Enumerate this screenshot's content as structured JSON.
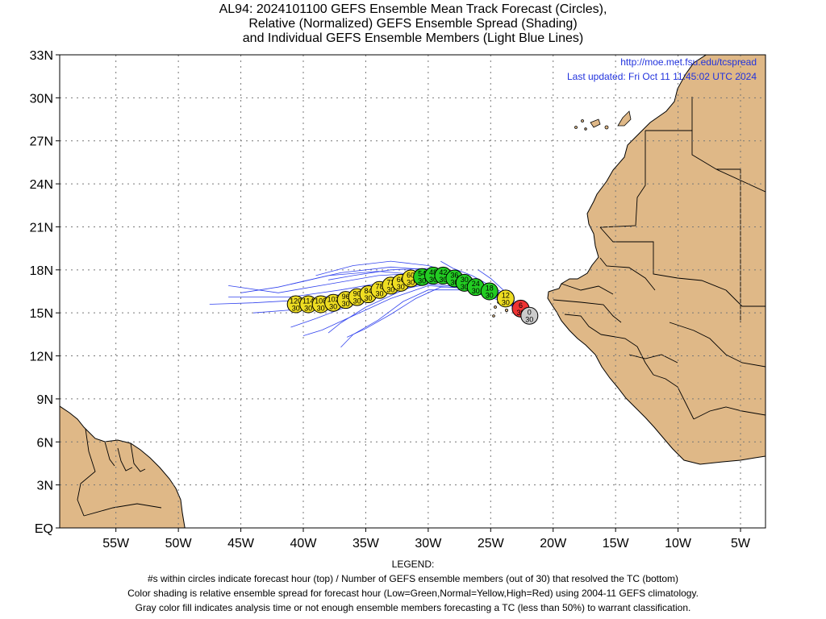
{
  "title": {
    "line1": "AL94: 2024101100 GEFS Ensemble Mean Track Forecast (Circles),",
    "line2": "Relative (Normalized) GEFS Ensemble Spread (Shading)",
    "line3": "and Individual GEFS Ensemble Members (Light Blue Lines)"
  },
  "credit": {
    "url": "http://moe.met.fsu.edu/tcspread",
    "updated": "Last updated: Fri Oct 11 11:45:02 UTC 2024"
  },
  "legend": {
    "header": "LEGEND:",
    "line1": "#s within circles indicate forecast hour (top) / Number of GEFS ensemble members (out of 30) that resolved the TC (bottom)",
    "line2": "Color shading is relative ensemble spread for forecast hour (Low=Green,Normal=Yellow,High=Red) using 2004-11 GEFS climatology.",
    "line3": "Gray color fill indicates analysis time or not enough ensemble members forecasting a TC (less than 50%) to warrant classification."
  },
  "axes": {
    "lat_labels": [
      "EQ",
      "3N",
      "6N",
      "9N",
      "12N",
      "15N",
      "18N",
      "21N",
      "24N",
      "27N",
      "30N",
      "33N"
    ],
    "lat_values": [
      0,
      3,
      6,
      9,
      12,
      15,
      18,
      21,
      24,
      27,
      30,
      33
    ],
    "lon_labels": [
      "55W",
      "50W",
      "45W",
      "40W",
      "35W",
      "30W",
      "25W",
      "20W",
      "15W",
      "10W",
      "5W"
    ],
    "lon_values": [
      -55,
      -50,
      -45,
      -40,
      -35,
      -30,
      -25,
      -20,
      -15,
      -10,
      -5
    ],
    "lon_range": [
      -59.5,
      -3
    ],
    "lat_range": [
      0,
      33
    ]
  },
  "colors": {
    "land": "#dfb887",
    "ocean": "#ffffff",
    "member_line": "#3344ee",
    "low_spread": "#22cc22",
    "normal_spread": "#eedd22",
    "high_spread": "#ee3333",
    "analysis": "#cccccc"
  },
  "track": [
    {
      "hour": "0",
      "members": "30",
      "lon": -21.9,
      "lat": 14.8,
      "spread": "gray"
    },
    {
      "hour": "6",
      "members": "30",
      "lon": -22.6,
      "lat": 15.3,
      "spread": "high"
    },
    {
      "hour": "12",
      "members": "30",
      "lon": -23.8,
      "lat": 16.0,
      "spread": "normal"
    },
    {
      "hour": "18",
      "members": "30",
      "lon": -25.1,
      "lat": 16.5,
      "spread": "low"
    },
    {
      "hour": "24",
      "members": "30",
      "lon": -26.2,
      "lat": 16.8,
      "spread": "low"
    },
    {
      "hour": "30",
      "members": "30",
      "lon": -27.1,
      "lat": 17.1,
      "spread": "low"
    },
    {
      "hour": "36",
      "members": "30",
      "lon": -27.9,
      "lat": 17.4,
      "spread": "low"
    },
    {
      "hour": "42",
      "members": "30",
      "lon": -28.8,
      "lat": 17.6,
      "spread": "low"
    },
    {
      "hour": "48",
      "members": "30",
      "lon": -29.6,
      "lat": 17.6,
      "spread": "low"
    },
    {
      "hour": "54",
      "members": "30",
      "lon": -30.5,
      "lat": 17.5,
      "spread": "low"
    },
    {
      "hour": "60",
      "members": "30",
      "lon": -31.4,
      "lat": 17.4,
      "spread": "normal"
    },
    {
      "hour": "66",
      "members": "30",
      "lon": -32.2,
      "lat": 17.1,
      "spread": "normal"
    },
    {
      "hour": "72",
      "members": "30",
      "lon": -33.0,
      "lat": 16.9,
      "spread": "normal"
    },
    {
      "hour": "78",
      "members": "30",
      "lon": -33.9,
      "lat": 16.6,
      "spread": "normal"
    },
    {
      "hour": "84",
      "members": "30",
      "lon": -34.8,
      "lat": 16.3,
      "spread": "normal"
    },
    {
      "hour": "90",
      "members": "30",
      "lon": -35.7,
      "lat": 16.1,
      "spread": "normal"
    },
    {
      "hour": "96",
      "members": "30",
      "lon": -36.6,
      "lat": 15.9,
      "spread": "normal"
    },
    {
      "hour": "102",
      "members": "30",
      "lon": -37.6,
      "lat": 15.7,
      "spread": "normal"
    },
    {
      "hour": "108",
      "members": "30",
      "lon": -38.6,
      "lat": 15.6,
      "spread": "normal"
    },
    {
      "hour": "114",
      "members": "30",
      "lon": -39.6,
      "lat": 15.6,
      "spread": "normal"
    },
    {
      "hour": "120",
      "members": "30",
      "lon": -40.6,
      "lat": 15.6,
      "spread": "normal"
    }
  ],
  "members_tracks": [
    [
      [
        -22,
        14.8
      ],
      [
        -24,
        16.0
      ],
      [
        -27,
        17.0
      ],
      [
        -30,
        17.6
      ],
      [
        -34,
        17.9
      ],
      [
        -38,
        17.6
      ],
      [
        -42,
        16.8
      ],
      [
        -45,
        16.4
      ]
    ],
    [
      [
        -22,
        14.8
      ],
      [
        -24,
        16.2
      ],
      [
        -27,
        17.3
      ],
      [
        -30,
        18.0
      ],
      [
        -33,
        18.2
      ],
      [
        -37,
        17.8
      ],
      [
        -41,
        17.0
      ]
    ],
    [
      [
        -22,
        14.8
      ],
      [
        -24,
        16.3
      ],
      [
        -27,
        17.5
      ],
      [
        -30,
        18.3
      ],
      [
        -33,
        18.6
      ],
      [
        -36,
        18.3
      ],
      [
        -39,
        17.6
      ]
    ],
    [
      [
        -22,
        14.8
      ],
      [
        -24,
        16.1
      ],
      [
        -27,
        17.1
      ],
      [
        -30,
        17.4
      ],
      [
        -33,
        17.0
      ],
      [
        -36,
        16.4
      ],
      [
        -40,
        15.9
      ],
      [
        -44,
        15.7
      ],
      [
        -47.5,
        15.6
      ]
    ],
    [
      [
        -22,
        14.8
      ],
      [
        -24,
        16.0
      ],
      [
        -27,
        16.8
      ],
      [
        -30,
        17.0
      ],
      [
        -33,
        16.5
      ],
      [
        -36,
        15.6
      ],
      [
        -39,
        14.6
      ],
      [
        -41,
        14.0
      ]
    ],
    [
      [
        -22,
        14.8
      ],
      [
        -24,
        15.9
      ],
      [
        -27,
        16.7
      ],
      [
        -30,
        16.9
      ],
      [
        -33,
        16.0
      ],
      [
        -36,
        14.8
      ],
      [
        -38.5,
        13.8
      ],
      [
        -40,
        13.4
      ]
    ],
    [
      [
        -22,
        14.8
      ],
      [
        -24,
        15.8
      ],
      [
        -27,
        16.6
      ],
      [
        -30,
        16.6
      ],
      [
        -32,
        15.8
      ],
      [
        -34,
        14.5
      ],
      [
        -36,
        13.5
      ],
      [
        -37,
        12.6
      ]
    ],
    [
      [
        -22,
        14.8
      ],
      [
        -24,
        15.9
      ],
      [
        -27,
        16.8
      ],
      [
        -29,
        16.8
      ],
      [
        -31,
        16.0
      ],
      [
        -33,
        14.9
      ],
      [
        -35,
        13.9
      ],
      [
        -36.5,
        13.3
      ]
    ],
    [
      [
        -22,
        14.8
      ],
      [
        -24,
        16.1
      ],
      [
        -27,
        17.2
      ],
      [
        -30,
        17.5
      ],
      [
        -33,
        17.2
      ],
      [
        -37,
        16.6
      ],
      [
        -41,
        16.1
      ],
      [
        -46,
        16.1
      ]
    ],
    [
      [
        -22,
        14.8
      ],
      [
        -24,
        16.2
      ],
      [
        -27,
        17.4
      ],
      [
        -30,
        17.8
      ],
      [
        -34,
        17.6
      ],
      [
        -38,
        17.0
      ],
      [
        -42,
        16.4
      ],
      [
        -46,
        16.9
      ]
    ],
    [
      [
        -22,
        14.8
      ],
      [
        -24,
        16.0
      ],
      [
        -27,
        17.0
      ],
      [
        -30,
        17.3
      ],
      [
        -33,
        16.8
      ],
      [
        -37,
        15.9
      ],
      [
        -41,
        15.2
      ],
      [
        -44,
        15.0
      ]
    ],
    [
      [
        -22,
        14.8
      ],
      [
        -24,
        16.3
      ],
      [
        -27,
        17.6
      ],
      [
        -30,
        18.1
      ],
      [
        -33,
        18.0
      ],
      [
        -36,
        17.6
      ],
      [
        -38,
        17.3
      ]
    ],
    [
      [
        -22,
        14.8
      ],
      [
        -24,
        16.4
      ],
      [
        -26.5,
        17.6
      ],
      [
        -28,
        18.1
      ],
      [
        -29,
        18.6
      ]
    ],
    [
      [
        -22,
        14.8
      ],
      [
        -23.5,
        16.2
      ],
      [
        -25,
        17.4
      ],
      [
        -26,
        18.0
      ]
    ],
    [
      [
        -22,
        14.8
      ],
      [
        -24,
        16.0
      ],
      [
        -27,
        16.9
      ],
      [
        -30,
        17.2
      ],
      [
        -32,
        16.6
      ],
      [
        -35,
        15.4
      ],
      [
        -37,
        14.3
      ],
      [
        -38,
        13.6
      ]
    ]
  ]
}
